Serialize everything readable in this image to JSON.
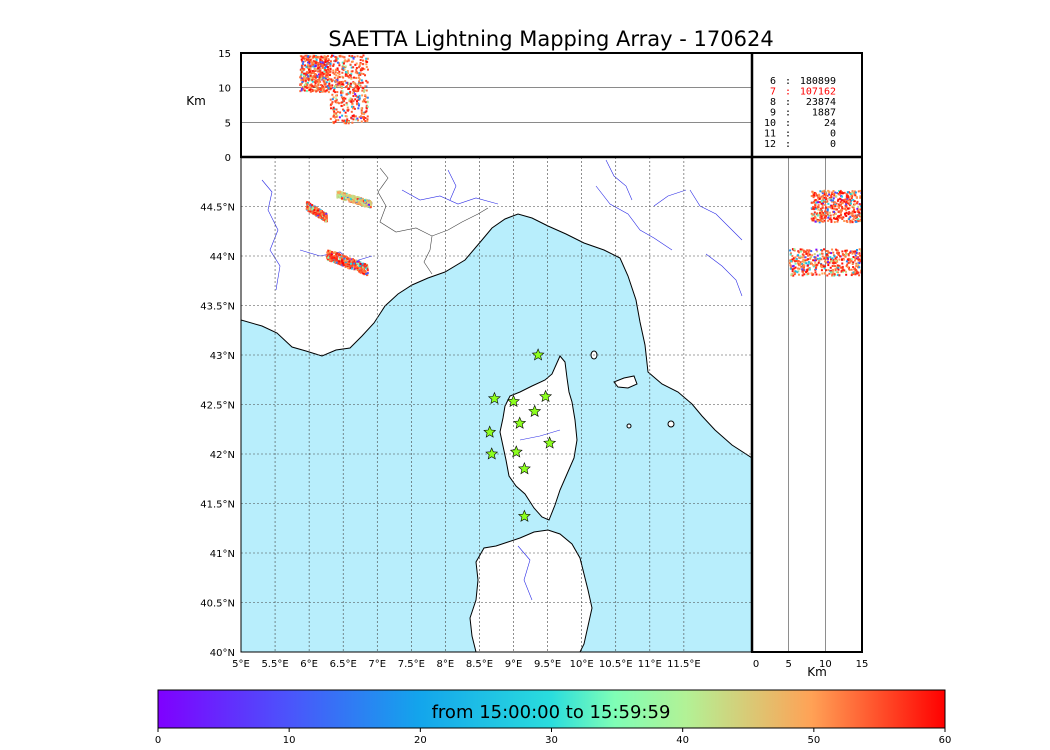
{
  "chart_data": {
    "type": "scatter",
    "title": "SAETTA Lightning Mapping Array - 170624",
    "panels": {
      "map": {
        "xlim": [
          5,
          12.5
        ],
        "ylim": [
          40,
          45
        ],
        "xticks": [
          "5°E",
          "5.5°E",
          "6°E",
          "6.5°E",
          "7°E",
          "7.5°E",
          "8°E",
          "8.5°E",
          "9°E",
          "9.5°E",
          "10°E",
          "10.5°E",
          "11°E",
          "11.5°E"
        ],
        "yticks": [
          "40°N",
          "40.5°N",
          "41°N",
          "41.5°N",
          "42°N",
          "42.5°N",
          "43°N",
          "43.5°N",
          "44°N",
          "44.5°N"
        ],
        "grid": true,
        "sea_color": "#b8eefc",
        "stations": [
          {
            "lon": 9.36,
            "lat": 43.0
          },
          {
            "lon": 8.72,
            "lat": 42.56
          },
          {
            "lon": 9.0,
            "lat": 42.53
          },
          {
            "lon": 9.47,
            "lat": 42.58
          },
          {
            "lon": 9.31,
            "lat": 42.43
          },
          {
            "lon": 9.09,
            "lat": 42.31
          },
          {
            "lon": 8.65,
            "lat": 42.22
          },
          {
            "lon": 9.53,
            "lat": 42.11
          },
          {
            "lon": 9.04,
            "lat": 42.02
          },
          {
            "lon": 8.68,
            "lat": 42.0
          },
          {
            "lon": 9.16,
            "lat": 41.85
          },
          {
            "lon": 9.16,
            "lat": 41.37
          }
        ],
        "storm_clusters": [
          {
            "lon_range": [
              6.4,
              6.9
            ],
            "lat_range": [
              44.49,
              44.67
            ],
            "dominant_time_min": 45
          },
          {
            "lon_range": [
              5.95,
              6.25
            ],
            "lat_range": [
              44.35,
              44.56
            ],
            "dominant_time_min": 55
          },
          {
            "lon_range": [
              6.25,
              6.85
            ],
            "lat_range": [
              43.81,
              44.08
            ],
            "dominant_time_min": 55
          }
        ]
      },
      "alt_vs_lon": {
        "ylabel": "Km",
        "ylim": [
          0,
          15
        ],
        "yticks": [
          "0",
          "5",
          "10",
          "15"
        ],
        "clusters": [
          {
            "lon_range": [
              5.85,
              6.3
            ],
            "alt_range": [
              9.5,
              14.8
            ]
          },
          {
            "lon_range": [
              6.3,
              6.85
            ],
            "alt_range": [
              5.0,
              14.8
            ]
          }
        ]
      },
      "alt_vs_lat": {
        "xlabel": "Km",
        "xlim": [
          0,
          15
        ],
        "xticks": [
          "0",
          "5",
          "10",
          "15"
        ],
        "clusters": [
          {
            "lat_range": [
              44.35,
              44.67
            ],
            "alt_range": [
              8.0,
              15
            ]
          },
          {
            "lat_range": [
              43.81,
              44.08
            ],
            "alt_range": [
              5.0,
              15
            ]
          }
        ]
      }
    },
    "station_counts": [
      {
        "stations": "6",
        "count": "180899",
        "color": "#000000"
      },
      {
        "stations": "7",
        "count": "107162",
        "color": "#ff0000"
      },
      {
        "stations": "8",
        "count": "23874",
        "color": "#000000"
      },
      {
        "stations": "9",
        "count": "1887",
        "color": "#000000"
      },
      {
        "stations": "10",
        "count": "24",
        "color": "#000000"
      },
      {
        "stations": "11",
        "count": "0",
        "color": "#000000"
      },
      {
        "stations": "12",
        "count": "0",
        "color": "#000000"
      }
    ],
    "colorbar": {
      "label": "from 15:00:00 to 15:59:59",
      "min": 0,
      "max": 60,
      "ticks": [
        "0",
        "10",
        "20",
        "30",
        "40",
        "50",
        "60"
      ],
      "colormap": "rainbow"
    }
  }
}
